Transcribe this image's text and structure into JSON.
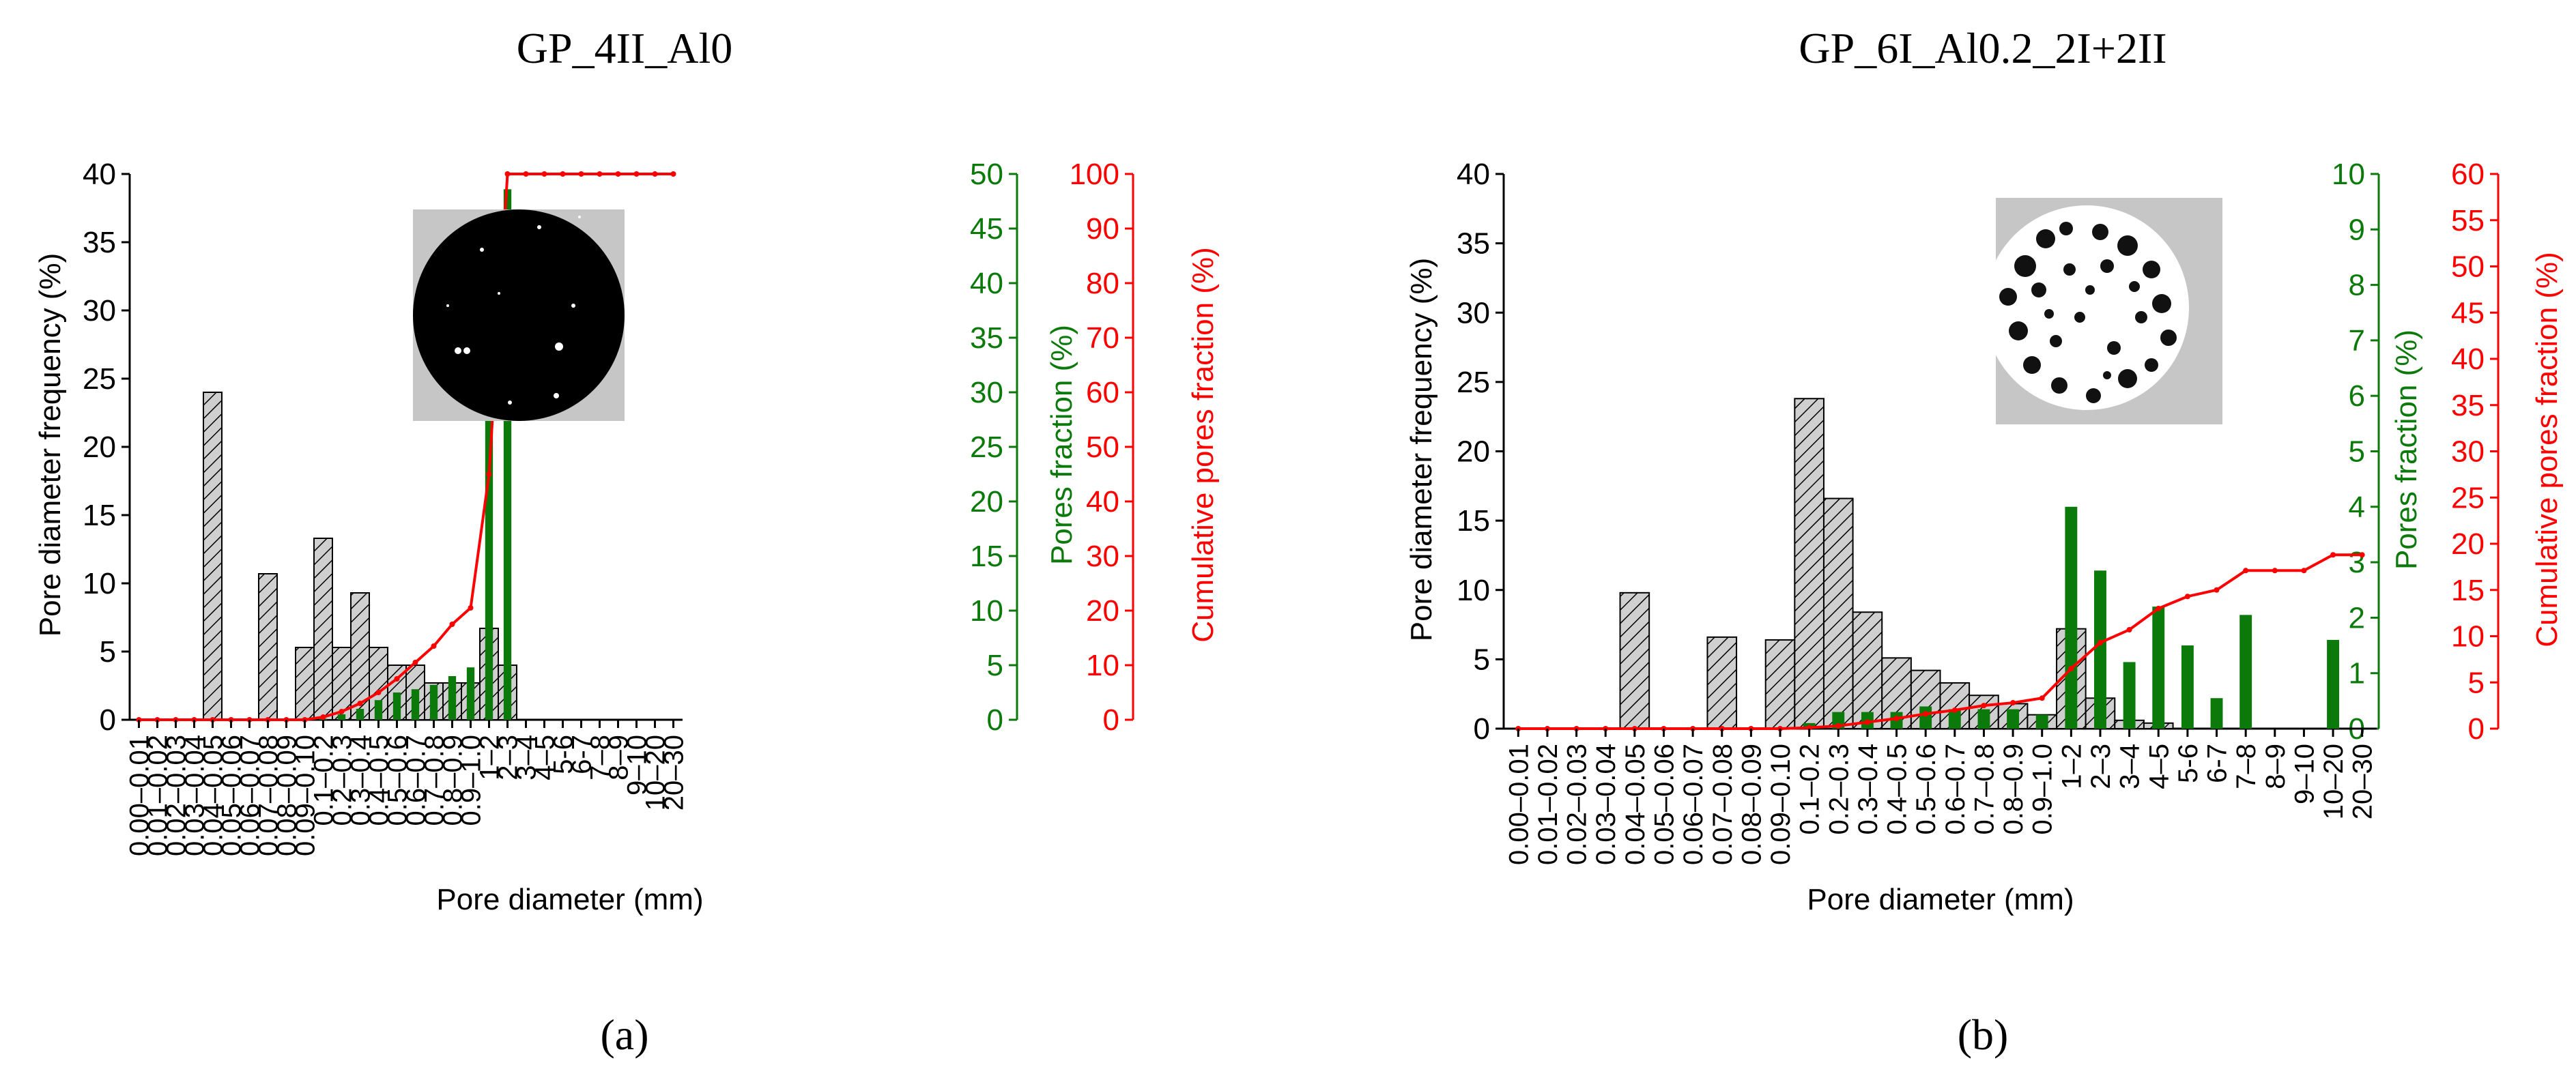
{
  "colors": {
    "frequency_axis": "#000000",
    "frequency_bar_fill": "#cfcfcf",
    "pores_fraction": "#0b7a0b",
    "cumulative": "#ff0000"
  },
  "chart_data": [
    {
      "type": "bar",
      "title": "GP_4II_Al0",
      "panel_label": "(a)",
      "xlabel": "Pore diameter (mm)",
      "ylabel_left": "Pore diameter frequency (%)",
      "ylabel_right1": "Pores fraction (%)",
      "ylabel_right2": "Cumulative pores fraction (%)",
      "categories": [
        "0.00–0.01",
        "0.01–0.02",
        "0.02–0.03",
        "0.03–0.04",
        "0.04–0.05",
        "0.05–0.06",
        "0.06–0.07",
        "0.07–0.08",
        "0.08–0.09",
        "0.09–0.10",
        "0.1–0.2",
        "0.2–0.3",
        "0.3–0.4",
        "0.4–0.5",
        "0.5–0.6",
        "0.6–0.7",
        "0.7–0.8",
        "0.8–0.9",
        "0.9–1.0",
        "1–2",
        "2–3",
        "3–4",
        "4–5",
        "5-6",
        "6-7",
        "7–8",
        "8–9",
        "9–10",
        "10–20",
        "20–30"
      ],
      "ylim_left": [
        0,
        40
      ],
      "yticks_left": [
        0,
        5,
        10,
        15,
        20,
        25,
        30,
        35,
        40
      ],
      "ylim_right1": [
        0,
        50
      ],
      "yticks_right1": [
        0,
        5,
        10,
        15,
        20,
        25,
        30,
        35,
        40,
        45,
        50
      ],
      "ylim_right2": [
        0,
        100
      ],
      "yticks_right2": [
        0,
        10,
        20,
        30,
        40,
        50,
        60,
        70,
        80,
        90,
        100
      ],
      "grid": false,
      "inset_image": "black-disc-with-white-pores",
      "series": [
        {
          "name": "Pore diameter frequency (%)",
          "type": "bar",
          "axis": "left",
          "values": [
            0,
            0,
            0,
            0,
            24,
            0,
            0,
            10.7,
            0,
            5.3,
            13.3,
            5.3,
            9.3,
            5.3,
            4,
            4,
            2.7,
            2.7,
            2.7,
            6.7,
            4,
            0,
            0,
            0,
            0,
            0,
            0,
            0,
            0,
            0
          ]
        },
        {
          "name": "Pores fraction (%)",
          "type": "bar",
          "axis": "right1",
          "values": [
            0,
            0,
            0,
            0,
            0,
            0,
            0,
            0,
            0,
            0,
            0.1,
            0.5,
            1,
            1.8,
            2.5,
            2.8,
            3.2,
            4,
            4.8,
            30.5,
            48.6,
            0,
            0,
            0,
            0,
            0,
            0,
            0,
            0,
            0
          ]
        },
        {
          "name": "Cumulative pores fraction (%)",
          "type": "line",
          "axis": "right2",
          "values": [
            0,
            0,
            0,
            0,
            0,
            0,
            0,
            0,
            0,
            0,
            0.5,
            1.5,
            3,
            5,
            7.5,
            10.5,
            13.5,
            17.5,
            20.5,
            45,
            100,
            100,
            100,
            100,
            100,
            100,
            100,
            100,
            100,
            100
          ]
        }
      ]
    },
    {
      "type": "bar",
      "title": "GP_6I_Al0.2_2I+2II",
      "panel_label": "(b)",
      "xlabel": "Pore diameter (mm)",
      "ylabel_left": "Pore diameter frequency (%)",
      "ylabel_right1": "Pores fraction (%)",
      "ylabel_right2": "Cumulative pores fraction (%)",
      "categories": [
        "0.00–0.01",
        "0.01–0.02",
        "0.02–0.03",
        "0.03–0.04",
        "0.04–0.05",
        "0.05–0.06",
        "0.06–0.07",
        "0.07–0.08",
        "0.08–0.09",
        "0.09–0.10",
        "0.1–0.2",
        "0.2–0.3",
        "0.3–0.4",
        "0.4–0.5",
        "0.5–0.6",
        "0.6–0.7",
        "0.7–0.8",
        "0.8–0.9",
        "0.9–1.0",
        "1–2",
        "2–3",
        "3–4",
        "4–5",
        "5-6",
        "6-7",
        "7–8",
        "8–9",
        "9–10",
        "10–20",
        "20–30"
      ],
      "ylim_left": [
        0,
        40
      ],
      "yticks_left": [
        0,
        5,
        10,
        15,
        20,
        25,
        30,
        35,
        40
      ],
      "ylim_right1": [
        0,
        10
      ],
      "yticks_right1": [
        0,
        1,
        2,
        3,
        4,
        5,
        6,
        7,
        8,
        9,
        10
      ],
      "ylim_right2": [
        0,
        60
      ],
      "yticks_right2": [
        0,
        5,
        10,
        15,
        20,
        25,
        30,
        35,
        40,
        45,
        50,
        55,
        60
      ],
      "grid": false,
      "inset_image": "textured-disc-on-grey-square",
      "series": [
        {
          "name": "Pore diameter frequency (%)",
          "type": "bar",
          "axis": "left",
          "values": [
            0,
            0,
            0,
            0,
            9.8,
            0,
            0,
            6.6,
            0,
            6.4,
            23.8,
            16.6,
            8.4,
            5.1,
            4.2,
            3.3,
            2.4,
            1.8,
            1,
            7.2,
            2.2,
            0.6,
            0.4,
            0,
            0,
            0,
            0,
            0,
            0,
            0
          ]
        },
        {
          "name": "Pores fraction (%)",
          "type": "bar",
          "axis": "right1",
          "values": [
            0,
            0,
            0,
            0,
            0,
            0,
            0,
            0,
            0,
            0,
            0.1,
            0.3,
            0.3,
            0.3,
            0.4,
            0.35,
            0.35,
            0.35,
            0.25,
            4,
            2.85,
            1.2,
            2.2,
            1.5,
            0.55,
            2.05,
            0,
            0,
            1.6,
            0
          ]
        },
        {
          "name": "Cumulative pores fraction (%)",
          "type": "line",
          "axis": "right2",
          "values": [
            0,
            0,
            0,
            0,
            0,
            0,
            0,
            0,
            0,
            0,
            0.1,
            0.3,
            0.7,
            1.1,
            1.6,
            2,
            2.5,
            2.8,
            3.3,
            6.5,
            9.3,
            10.7,
            13,
            14.3,
            15,
            17.1,
            17.1,
            17.1,
            18.8,
            18.8
          ]
        }
      ]
    }
  ]
}
